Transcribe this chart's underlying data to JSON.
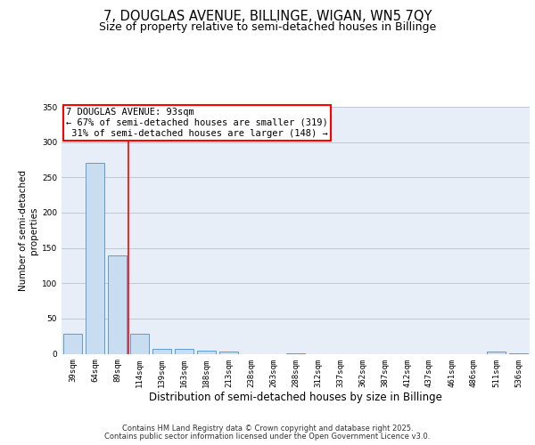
{
  "title1": "7, DOUGLAS AVENUE, BILLINGE, WIGAN, WN5 7QY",
  "title2": "Size of property relative to semi-detached houses in Billinge",
  "xlabel": "Distribution of semi-detached houses by size in Billinge",
  "ylabel": "Number of semi-detached\nproperties",
  "categories": [
    "39sqm",
    "64sqm",
    "89sqm",
    "114sqm",
    "139sqm",
    "163sqm",
    "188sqm",
    "213sqm",
    "238sqm",
    "263sqm",
    "288sqm",
    "312sqm",
    "337sqm",
    "362sqm",
    "387sqm",
    "412sqm",
    "437sqm",
    "461sqm",
    "486sqm",
    "511sqm",
    "536sqm"
  ],
  "values": [
    28,
    270,
    140,
    28,
    7,
    7,
    5,
    3,
    0,
    0,
    1,
    0,
    0,
    0,
    0,
    0,
    0,
    0,
    0,
    3,
    1
  ],
  "bar_color": "#c9ddf0",
  "bar_edge_color": "#5b9bd5",
  "grid_color": "#c0c8d8",
  "background_color": "#e8eef8",
  "annotation_line1": "7 DOUGLAS AVENUE: 93sqm",
  "annotation_line2": "← 67% of semi-detached houses are smaller (319)",
  "annotation_line3": " 31% of semi-detached houses are larger (148) →",
  "property_line_x": 2.5,
  "ylim": [
    0,
    350
  ],
  "yticks": [
    0,
    50,
    100,
    150,
    200,
    250,
    300,
    350
  ],
  "footer1": "Contains HM Land Registry data © Crown copyright and database right 2025.",
  "footer2": "Contains public sector information licensed under the Open Government Licence v3.0.",
  "title1_fontsize": 10.5,
  "title2_fontsize": 9,
  "xlabel_fontsize": 8.5,
  "ylabel_fontsize": 7.5,
  "tick_fontsize": 6.5,
  "annotation_fontsize": 7.5,
  "footer_fontsize": 6.0
}
